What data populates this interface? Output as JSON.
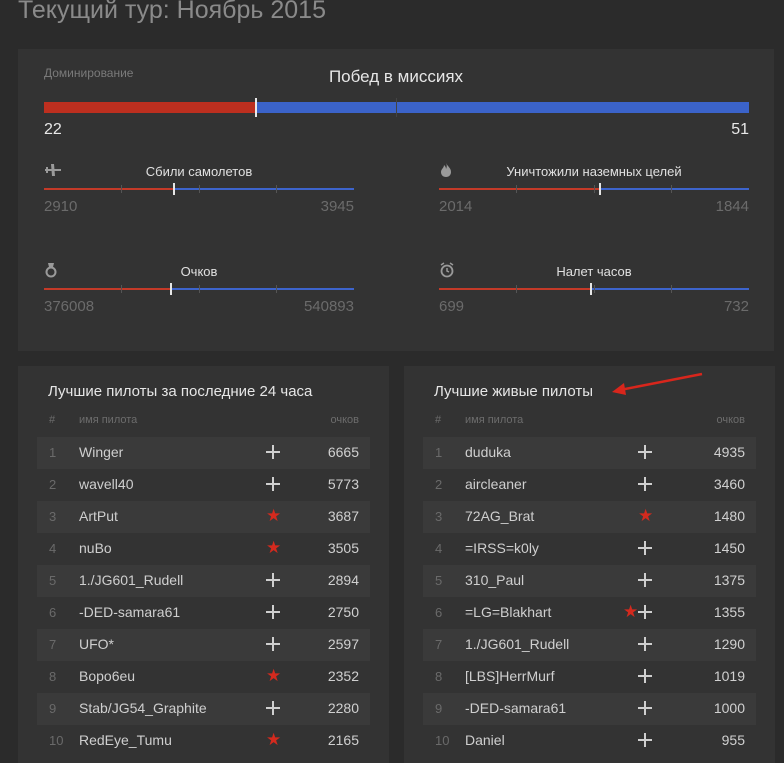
{
  "page_title": "Текущий тур: Ноябрь 2015",
  "domination": {
    "label": "Доминирование",
    "title": "Побед в миссиях",
    "left_value": "22",
    "right_value": "51",
    "red_fraction": 0.3
  },
  "stats": [
    {
      "icon": "plane-icon",
      "label": "Сбили самолетов",
      "left": "2910",
      "right": "3945",
      "marker": 0.42
    },
    {
      "icon": "fire-icon",
      "label": "Уничтожили наземных целей",
      "left": "2014",
      "right": "1844",
      "marker": 0.52
    },
    {
      "icon": "medal-icon",
      "label": "Очков",
      "left": "376008",
      "right": "540893",
      "marker": 0.41
    },
    {
      "icon": "clock-icon",
      "label": "Налет часов",
      "left": "699",
      "right": "732",
      "marker": 0.49
    }
  ],
  "tables": [
    {
      "title": "Лучшие пилоты за последние 24 часа",
      "col_num": "#",
      "col_name": "имя пилота",
      "col_score": "очков",
      "rows": [
        {
          "num": "1",
          "name": "Winger",
          "icons": [
            "cross"
          ],
          "score": "6665"
        },
        {
          "num": "2",
          "name": "wavell40",
          "icons": [
            "cross"
          ],
          "score": "5773"
        },
        {
          "num": "3",
          "name": "ArtPut",
          "icons": [
            "star"
          ],
          "score": "3687"
        },
        {
          "num": "4",
          "name": "nuBo",
          "icons": [
            "star"
          ],
          "score": "3505"
        },
        {
          "num": "5",
          "name": "1./JG601_Rudell",
          "icons": [
            "cross"
          ],
          "score": "2894"
        },
        {
          "num": "6",
          "name": "-DED-samara61",
          "icons": [
            "cross"
          ],
          "score": "2750"
        },
        {
          "num": "7",
          "name": "UFO*",
          "icons": [
            "cross"
          ],
          "score": "2597"
        },
        {
          "num": "8",
          "name": "Bopo6eu",
          "icons": [
            "star"
          ],
          "score": "2352"
        },
        {
          "num": "9",
          "name": "Stab/JG54_Graphite",
          "icons": [
            "cross"
          ],
          "score": "2280"
        },
        {
          "num": "10",
          "name": "RedEye_Tumu",
          "icons": [
            "star"
          ],
          "score": "2165"
        }
      ]
    },
    {
      "title": "Лучшие живые пилоты",
      "col_num": "#",
      "col_name": "имя пилота",
      "col_score": "очков",
      "rows": [
        {
          "num": "1",
          "name": "duduka",
          "icons": [
            "cross"
          ],
          "score": "4935"
        },
        {
          "num": "2",
          "name": "aircleaner",
          "icons": [
            "cross"
          ],
          "score": "3460"
        },
        {
          "num": "3",
          "name": "72AG_Brat",
          "icons": [
            "star"
          ],
          "score": "1480"
        },
        {
          "num": "4",
          "name": "=IRSS=k0ly",
          "icons": [
            "cross"
          ],
          "score": "1450"
        },
        {
          "num": "5",
          "name": "310_Paul",
          "icons": [
            "cross"
          ],
          "score": "1375"
        },
        {
          "num": "6",
          "name": "=LG=Blakhart",
          "icons": [
            "star",
            "cross"
          ],
          "score": "1355"
        },
        {
          "num": "7",
          "name": "1./JG601_Rudell",
          "icons": [
            "cross"
          ],
          "score": "1290"
        },
        {
          "num": "8",
          "name": "[LBS]HerrMurf",
          "icons": [
            "cross"
          ],
          "score": "1019"
        },
        {
          "num": "9",
          "name": "-DED-samara61",
          "icons": [
            "cross"
          ],
          "score": "1000"
        },
        {
          "num": "10",
          "name": "Daniel",
          "icons": [
            "cross"
          ],
          "score": "955"
        }
      ]
    }
  ],
  "colors": {
    "red": "#bd2f1f",
    "blue": "#3b63c9",
    "panel": "#333333",
    "background": "#2b2b2b"
  }
}
